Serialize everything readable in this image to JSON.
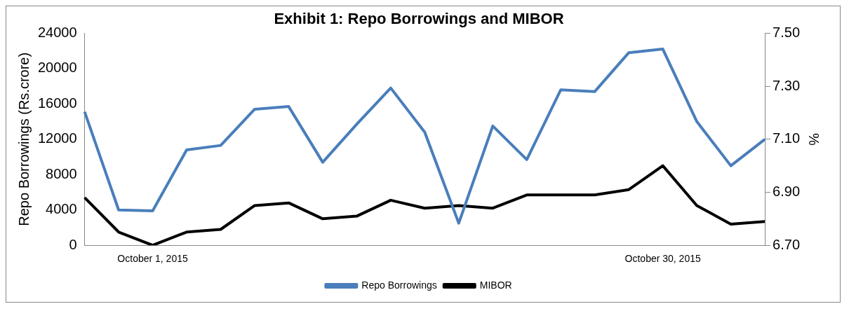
{
  "chart_data": {
    "type": "line",
    "title": "Exhibit 1: Repo Borrowings and MIBOR",
    "ylabel": "Repo Borrowings (Rs.crore)",
    "y2label": "%",
    "categories": [
      null,
      null,
      "October 1, 2015",
      null,
      null,
      null,
      null,
      null,
      null,
      null,
      null,
      null,
      null,
      null,
      null,
      null,
      null,
      "October 30, 2015",
      null,
      null,
      null
    ],
    "series": [
      {
        "name": "Repo Borrowings",
        "color": "#4a7ebb",
        "values": [
          15100,
          4000,
          3900,
          10800,
          11300,
          15400,
          15700,
          9400,
          13700,
          17800,
          12800,
          2500,
          13500,
          9700,
          17600,
          17400,
          21800,
          22200,
          14000,
          9000,
          12000
        ]
      },
      {
        "name": "MIBOR",
        "color": "#000000",
        "axis": "y2",
        "values": [
          6.88,
          6.75,
          6.7,
          6.75,
          6.76,
          6.85,
          6.86,
          6.8,
          6.81,
          6.87,
          6.84,
          6.85,
          6.84,
          6.89,
          6.89,
          6.89,
          6.91,
          7.0,
          6.85,
          6.78,
          6.79
        ]
      }
    ],
    "ylim": [
      0,
      24000
    ],
    "yticks": [
      0,
      4000,
      8000,
      12000,
      16000,
      20000,
      24000
    ],
    "y2lim": [
      6.7,
      7.5
    ],
    "y2ticks": [
      {
        "value": 6.7,
        "label": "6.70"
      },
      {
        "value": 6.9,
        "label": "6.90"
      },
      {
        "value": 7.1,
        "label": "7.10"
      },
      {
        "value": 7.3,
        "label": "7.30"
      },
      {
        "value": 7.5,
        "label": "7.50"
      }
    ],
    "grid": false,
    "legend": "bottom",
    "marker": "none",
    "line_style": "solid"
  }
}
